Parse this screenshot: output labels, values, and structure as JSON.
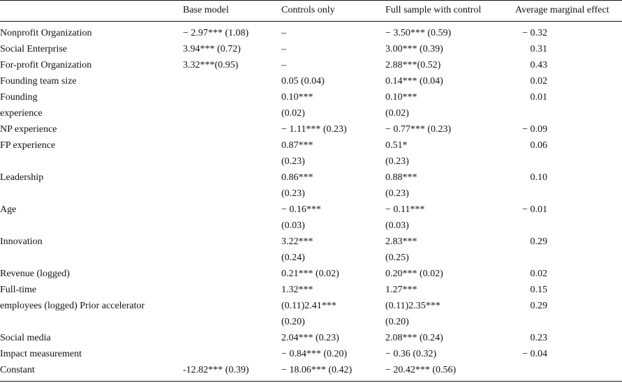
{
  "headers": [
    "",
    "Base model",
    "Controls only",
    "Full sample with control",
    "Average marginal effect"
  ],
  "rows": [
    [
      "Nonprofit Organization",
      "− 2.97*** (1.08)",
      "–",
      "− 3.50*** (0.59)",
      "− 0.32"
    ],
    [
      "Social Enterprise",
      "3.94*** (0.72)",
      "–",
      "3.00*** (0.39)",
      "0.31"
    ],
    [
      "For-profit Organization",
      "3.32***(0.95)",
      "–",
      "2.88***(0.52)",
      "0.43"
    ],
    [
      "Founding team size",
      "",
      "0.05 (0.04)",
      "0.14*** (0.04)",
      "0.02"
    ],
    [
      "Founding",
      "",
      "0.10***",
      "0.10***",
      "0.01"
    ],
    [
      "experience",
      "",
      "(0.02)",
      "(0.02)",
      ""
    ],
    [
      "NP experience",
      "",
      "− 1.11*** (0.23)",
      "− 0.77*** (0.23)",
      "− 0.09"
    ],
    [
      "FP experience",
      "",
      "0.87***",
      "0.51*",
      "0.06"
    ],
    [
      "",
      "",
      "(0.23)",
      "(0.23)",
      ""
    ],
    [
      "Leadership",
      "",
      "0.86***",
      "0.88***",
      "0.10"
    ],
    [
      "",
      "",
      "(0.23)",
      "(0.23)",
      ""
    ],
    [
      "Age",
      "",
      "− 0.16***",
      "− 0.11***",
      "− 0.01"
    ],
    [
      "",
      "",
      "(0.03)",
      "(0.03)",
      ""
    ],
    [
      "Innovation",
      "",
      "3.22***",
      "2.83***",
      "0.29"
    ],
    [
      "",
      "",
      "(0.24)",
      "(0.25)",
      ""
    ],
    [
      "Revenue (logged)",
      "",
      "0.21*** (0.02)",
      "0.20*** (0.02)",
      "0.02"
    ],
    [
      "Full-time",
      "",
      "1.32***",
      "1.27***",
      "0.15"
    ],
    [
      "employees (logged) Prior accelerator",
      "",
      "(0.11)2.41***",
      "(0.11)2.35***",
      "0.29"
    ],
    [
      "",
      "",
      "(0.20)",
      "(0.20)",
      ""
    ],
    [
      "Social media",
      "",
      "2.04*** (0.23)",
      "2.08*** (0.24)",
      "0.23"
    ],
    [
      "Impact measurement",
      "",
      "− 0.84*** (0.20)",
      "− 0.36 (0.32)",
      "− 0.04"
    ],
    [
      "Constant",
      "-12.82*** (0.39)",
      "− 18.06*** (0.42)",
      "− 20.42*** (0.56)",
      ""
    ]
  ]
}
